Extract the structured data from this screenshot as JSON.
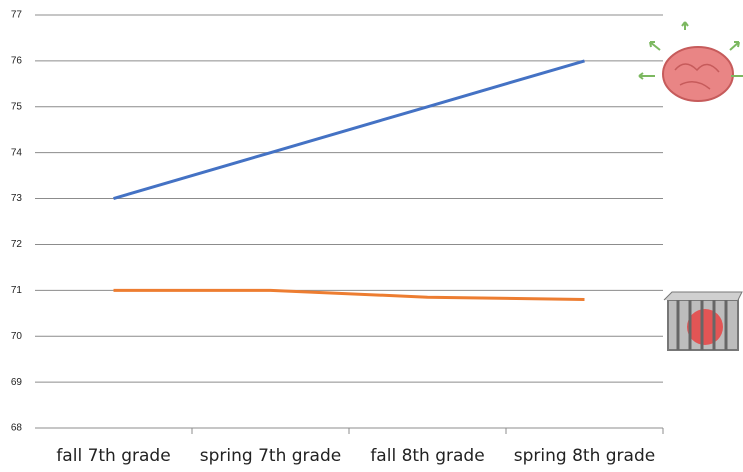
{
  "chart_data": {
    "type": "line",
    "categories": [
      "fall 7th grade",
      "spring 7th grade",
      "fall 8th grade",
      "spring 8th grade"
    ],
    "series": [
      {
        "color": "#4472c4",
        "values": [
          73,
          74,
          75,
          76
        ]
      },
      {
        "color": "#ed7d31",
        "values": [
          71,
          71,
          70.85,
          70.8
        ]
      }
    ],
    "ylim": [
      68,
      77
    ],
    "yticks": [
      68,
      69,
      70,
      71,
      72,
      73,
      74,
      75,
      76,
      77
    ],
    "grid": true
  }
}
